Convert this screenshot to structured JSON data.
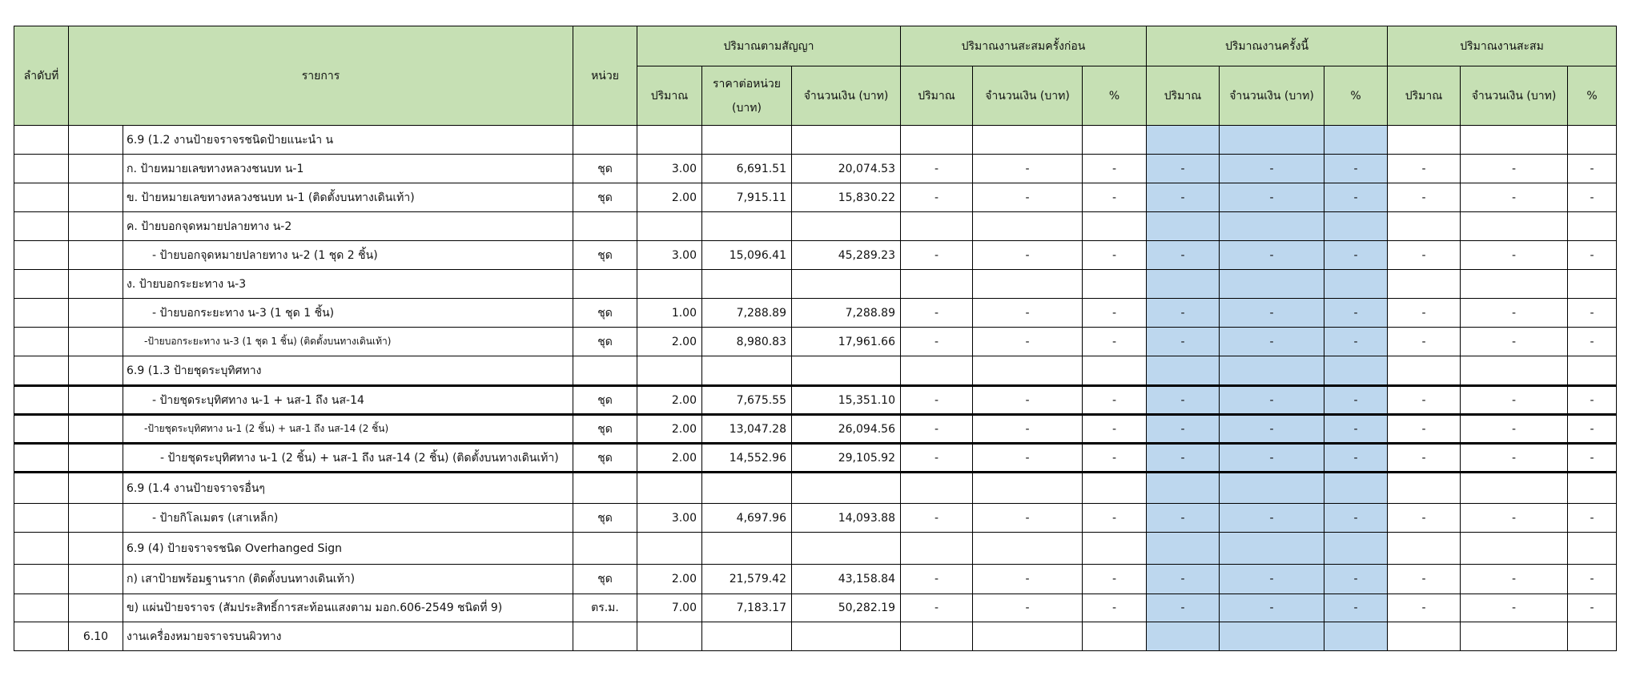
{
  "header": {
    "seq": "ลำดับที่",
    "item": "รายการ",
    "unit": "หน่วย",
    "contract": "ปริมาณตามสัญญา",
    "prev": "ปริมาณงานสะสมครั้งก่อน",
    "current": "ปริมาณงานครั้งนี้",
    "cumulative": "ปริมาณงานสะสม",
    "qty": "ปริมาณ",
    "unit_price": "ราคาต่อหน่วย (บาท)",
    "amount": "จำนวนเงิน (บาท)",
    "percent": "%"
  },
  "colors": {
    "header_bg": "#c6e0b4",
    "current_bg": "#bdd7ee"
  },
  "rows": [
    {
      "no": "",
      "item": "6.9 (1.2  งานป้ายจราจรชนิดป้ายแนะนำ น",
      "indent": 0,
      "unit": "",
      "qty": "",
      "price": "",
      "amount": "",
      "dash": false
    },
    {
      "no": "",
      "item": "ก. ป้ายหมายเลขทางหลวงชนบท น-1",
      "indent": 0,
      "unit": "ชุด",
      "qty": "3.00",
      "price": "6,691.51",
      "amount": "20,074.53",
      "dash": true
    },
    {
      "no": "",
      "item": "ข. ป้ายหมายเลขทางหลวงชนบท น-1 (ติดตั้งบนทางเดินเท้า)",
      "indent": 0,
      "unit": "ชุด",
      "qty": "2.00",
      "price": "7,915.11",
      "amount": "15,830.22",
      "dash": true
    },
    {
      "no": "",
      "item": "ค. ป้ายบอกจุดหมายปลายทาง น-2",
      "indent": 0,
      "unit": "",
      "qty": "",
      "price": "",
      "amount": "",
      "dash": false
    },
    {
      "no": "",
      "item": "- ป้ายบอกจุดหมายปลายทาง น-2 (1 ชุด 2 ชิ้น)",
      "indent": 1,
      "unit": "ชุด",
      "qty": "3.00",
      "price": "15,096.41",
      "amount": "45,289.23",
      "dash": true
    },
    {
      "no": "",
      "item": "ง. ป้ายบอกระยะทาง น-3",
      "indent": 0,
      "unit": "",
      "qty": "",
      "price": "",
      "amount": "",
      "dash": false
    },
    {
      "no": "",
      "item": "- ป้ายบอกระยะทาง น-3 (1 ชุด 1 ชิ้น)",
      "indent": 1,
      "unit": "ชุด",
      "qty": "1.00",
      "price": "7,288.89",
      "amount": "7,288.89",
      "dash": true
    },
    {
      "no": "",
      "item": "-ป้ายบอกระยะทาง น-3 (1 ชุด 1 ชิ้น) (ติดตั้งบนทางเดินเท้า)",
      "indent": 2,
      "unit": "ชุด",
      "qty": "2.00",
      "price": "8,980.83",
      "amount": "17,961.66",
      "dash": true
    },
    {
      "no": "",
      "item": "6.9 (1.3  ป้ายชุดระบุทิศทาง",
      "indent": 0,
      "unit": "",
      "qty": "",
      "price": "",
      "amount": "",
      "dash": false,
      "thick": true
    },
    {
      "no": "",
      "item": "- ป้ายชุดระบุทิศทาง น-1 + นส-1 ถึง นส-14",
      "indent": 1,
      "unit": "ชุด",
      "qty": "2.00",
      "price": "7,675.55",
      "amount": "15,351.10",
      "dash": true,
      "thick": true
    },
    {
      "no": "",
      "item": "-ป้ายชุดระบุทิศทาง น-1 (2 ชิ้น) + นส-1 ถึง นส-14 (2 ชิ้น)",
      "indent": 2,
      "unit": "ชุด",
      "qty": "2.00",
      "price": "13,047.28",
      "amount": "26,094.56",
      "dash": true,
      "thick": true
    },
    {
      "no": "",
      "item": "- ป้ายชุดระบุทิศทาง น-1 (2 ชิ้น) + นส-1 ถึง นส-14 (2 ชิ้น) (ติดตั้งบนทางเดินเท้า)",
      "indent": 3,
      "unit": "ชุด",
      "qty": "2.00",
      "price": "14,552.96",
      "amount": "29,105.92",
      "dash": true,
      "thick": true
    },
    {
      "no": "",
      "item": "6.9 (1.4  งานป้ายจราจรอื่นๆ",
      "indent": 0,
      "unit": "",
      "qty": "",
      "price": "",
      "amount": "",
      "dash": false
    },
    {
      "no": "",
      "item": "- ป้ายกิโลเมตร (เสาเหล็ก)",
      "indent": 1,
      "unit": "ชุด",
      "qty": "3.00",
      "price": "4,697.96",
      "amount": "14,093.88",
      "dash": true
    },
    {
      "no": "",
      "item": "6.9 (4)   ป้ายจราจรชนิด Overhanged Sign",
      "indent": 0,
      "unit": "",
      "qty": "",
      "price": "",
      "amount": "",
      "dash": false
    },
    {
      "no": "",
      "item": "ก) เสาป้ายพร้อมฐานราก (ติดตั้งบนทางเดินเท้า)",
      "indent": 0,
      "unit": "ชุด",
      "qty": "2.00",
      "price": "21,579.42",
      "amount": "43,158.84",
      "dash": true
    },
    {
      "no": "",
      "item": "ข) แผ่นป้ายจราจร (สัมประสิทธิ์การสะท้อนแสงตาม มอก.606-2549 ชนิดที่ 9)",
      "indent": 0,
      "unit": "ตร.ม.",
      "qty": "7.00",
      "price": "7,183.17",
      "amount": "50,282.19",
      "dash": true
    },
    {
      "no": "6.10",
      "item": "งานเครื่องหมายจราจรบนผิวทาง",
      "indent": 0,
      "unit": "",
      "qty": "",
      "price": "",
      "amount": "",
      "dash": false
    }
  ],
  "dash": "-"
}
